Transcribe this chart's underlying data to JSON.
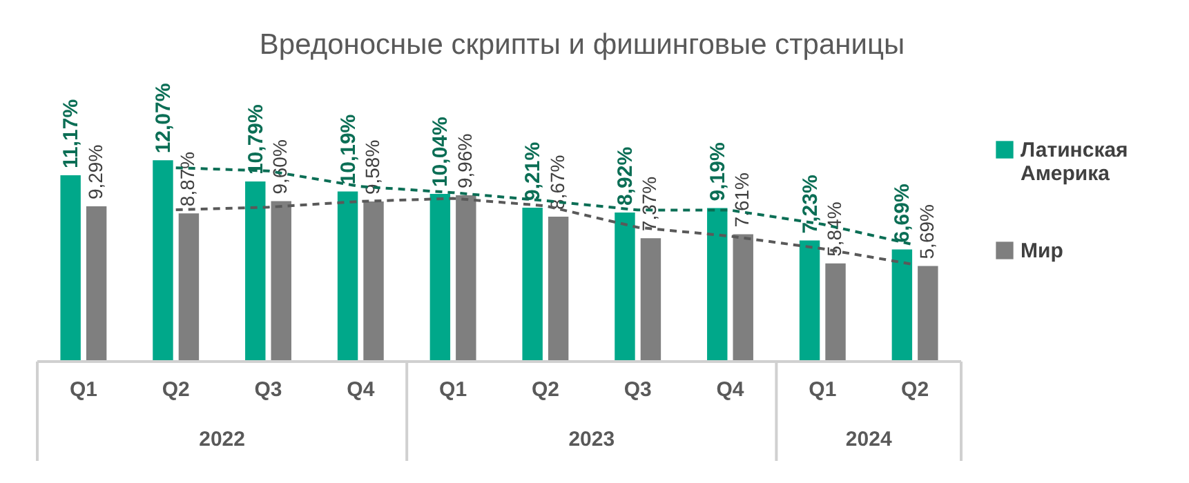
{
  "chart_data": {
    "type": "bar",
    "title": "Вредоносные скрипты и фишинговые страницы",
    "categories": [
      "Q1",
      "Q2",
      "Q3",
      "Q4",
      "Q1",
      "Q2",
      "Q3",
      "Q4",
      "Q1",
      "Q2"
    ],
    "annotations": [
      "2022",
      "2023",
      "2024"
    ],
    "series": [
      {
        "name": "Латинская Америка",
        "color": "#00a88a",
        "values": [
          11.17,
          12.07,
          10.79,
          10.19,
          10.04,
          9.21,
          8.92,
          9.19,
          7.23,
          6.69
        ],
        "value_labels": [
          "11,17%",
          "12,07%",
          "10,79%",
          "10,19%",
          "10,04%",
          "9,21%",
          "8,92%",
          "9,19%",
          "7,23%",
          "6,69%"
        ]
      },
      {
        "name": "Мир",
        "color": "#7f7f7f",
        "values": [
          9.29,
          8.87,
          9.6,
          9.58,
          9.96,
          8.67,
          7.37,
          7.61,
          5.84,
          5.69
        ],
        "value_labels": [
          "9,29%",
          "8,87%",
          "9,60%",
          "9,58%",
          "9,96%",
          "8,67%",
          "7,37%",
          "7,61%",
          "5,84%",
          "5,69%"
        ]
      },
      {
        "type": "line",
        "color": "#0b6e55",
        "line_style": "dashed",
        "values": [
          null,
          11.62,
          11.43,
          10.49,
          10.12,
          9.63,
          9.07,
          9.06,
          8.21,
          6.96
        ]
      },
      {
        "type": "line",
        "color": "#595959",
        "line_style": "dashed",
        "values": [
          null,
          9.08,
          9.24,
          9.59,
          9.77,
          9.32,
          8.02,
          7.49,
          6.73,
          5.77
        ]
      }
    ],
    "legend": "right"
  }
}
